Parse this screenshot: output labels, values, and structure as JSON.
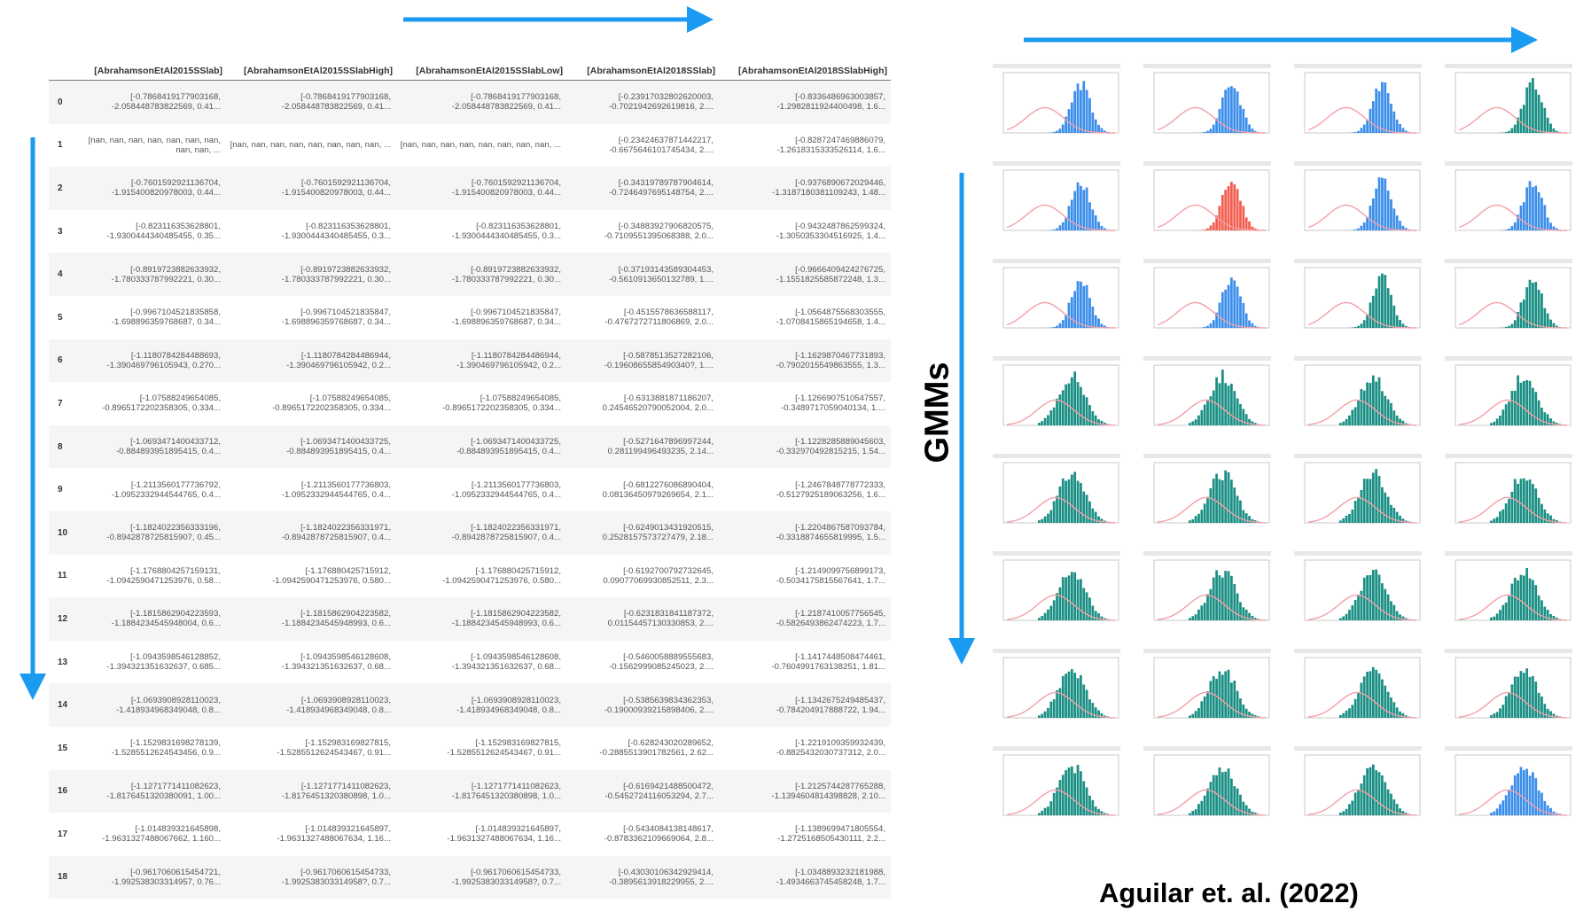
{
  "columns": [
    "[AbrahamsonEtAl2015SSlab]",
    "[AbrahamsonEtAl2015SSlabHigh]",
    "[AbrahamsonEtAl2015SSlabLow]",
    "[AbrahamsonEtAl2018SSlab]",
    "[AbrahamsonEtAl2018SSlabHigh]"
  ],
  "rows": [
    {
      "index": "0",
      "cells": [
        "[-0.7868419177903168, -2.058448783822569, 0.41...",
        "[-0.7868419177903168, -2.058448783822569, 0.41...",
        "[-0.7868419177903168, -2.058448783822569, 0.41...",
        "[-0.23917032802620003, -0.7021942692619816, 2....",
        "[-0.8336486963003857, -1.2982811924400498, 1.6..."
      ]
    },
    {
      "index": "1",
      "cells": [
        "[nan, nan, nan, nan, nan, nan, nan, nan, nan, ...",
        "[nan, nan, nan, nan, nan, nan, nan, nan, ...",
        "[nan, nan, nan, nan, nan, nan, nan, nan, ...",
        "[-0.23424637871442217, -0.6675646101745434, 2....",
        "[-0.8287247469886079, -1.2618315333526114, 1.6..."
      ]
    },
    {
      "index": "2",
      "cells": [
        "[-0.7601592921136704, -1.915400820978003, 0.44...",
        "[-0.7601592921136704, -1.915400820978003, 0.44...",
        "[-0.7601592921136704, -1.915400820978003, 0.44...",
        "[-0.34319789787904614, -0.7246497695148754, 2....",
        "[-0.9376890672029446, -1.3187180381109243, 1.48..."
      ]
    },
    {
      "index": "3",
      "cells": [
        "[-0.823116353628801, -1.9300444340485455, 0.35...",
        "[-0.823116353628801, -1.9300444340485455, 0.3...",
        "[-0.823116353628801, -1.9300444340485455, 0.3...",
        "[-0.34883927906820575, -0.7109551395068388, 2.0...",
        "[-0.9432487862599324, -1.3050353304516925, 1.4..."
      ]
    },
    {
      "index": "4",
      "cells": [
        "[-0.8919723882633932, -1.780333787992221, 0.30...",
        "[-0.8919723882633932, -1.780333787992221, 0.30...",
        "[-0.8919723882633932, -1.780333787992221, 0.30...",
        "[-0.37193143589304453, -0.5610913650132789, 1....",
        "[-0.9666409424276725, -1.1551825585872248, 1.3..."
      ]
    },
    {
      "index": "5",
      "cells": [
        "[-0.9967104521835858, -1.698896359768687, 0.34...",
        "[-0.9967104521835847, -1.698896359768687, 0.34...",
        "[-0.9967104521835847, -1.698896359768687, 0.34...",
        "[-0.4515578636588117, -0.4767272711806869, 2.0...",
        "[-1.0564875568303555, -1.0708415865194658, 1.4..."
      ]
    },
    {
      "index": "6",
      "cells": [
        "[-1.1180784284488693, -1.390469796105943, 0.270...",
        "[-1.1180784284486944, -1.390469796105942, 0.2...",
        "[-1.1180784284486944, -1.390469796105942, 0.2...",
        "[-0.5878513527282106, -0.1960865585490340?, 1....",
        "[-1.1629870467731893, -0.7902015549863555, 1.3..."
      ]
    },
    {
      "index": "7",
      "cells": [
        "[-1.07588249654085, -0.8965172202358305, 0.334...",
        "[-1.07588249654085, -0.8965172202358305, 0.334...",
        "[-1.07588249654085, -0.8965172202358305, 0.334...",
        "[-0.6313881871186207, 0.24546520790052004, 2.0...",
        "[-1.1266907510547557, -0.3489717059040134, 1...."
      ]
    },
    {
      "index": "8",
      "cells": [
        "[-1.0693471400433712, -0.884893951895415, 0.4...",
        "[-1.0693471400433725, -0.884893951895415, 0.4...",
        "[-1.0693471400433725, -0.884893951895415, 0.4...",
        "[-0.5271647896997244, 0.281199496493235, 2.14...",
        "[-1.1228285889045603, -0.332970492815215, 1.54..."
      ]
    },
    {
      "index": "9",
      "cells": [
        "[-1.2113560177736792, -1.0952332944544765, 0.4...",
        "[-1.2113560177736803, -1.0952332944544765, 0.4...",
        "[-1.2113560177736803, -1.0952332944544765, 0.4...",
        "[-0.6812276086890404, 0.08136450979269654, 2.1...",
        "[-1.2467848778772333, -0.5127925189063256, 1.6..."
      ]
    },
    {
      "index": "10",
      "cells": [
        "[-1.1824022356333196, -0.8942878725815907, 0.45...",
        "[-1.1824022356331971, -0.8942878725815907, 0.4...",
        "[-1.1824022356331971, -0.8942878725815907, 0.4...",
        "[-0.6249013431920515, 0.2528157573727479, 2.18...",
        "[-1.2204867587093784, -0.3318874655819995, 1.5..."
      ]
    },
    {
      "index": "11",
      "cells": [
        "[-1.1768804257159131, -1.0942590471253976, 0.58...",
        "[-1.176880425715912, -1.0942590471253976, 0.580...",
        "[-1.176880425715912, -1.0942590471253976, 0.580...",
        "[-0.6192700792732645, 0.09077069930852511, 2.3...",
        "[-1.2149099756899173, -0.5034175815567641, 1.7..."
      ]
    },
    {
      "index": "12",
      "cells": [
        "[-1.1815862904223593, -1.1884234545948004, 0.6...",
        "[-1.1815862904223582, -1.1884234545948993, 0.6...",
        "[-1.1815862904223582, -1.1884234545948993, 0.6...",
        "[-0.6231831841187372, 0.01154457130330853, 2....",
        "[-1.2187410057756545, -0.5826493862474223, 1.7..."
      ]
    },
    {
      "index": "13",
      "cells": [
        "[-1.0943598546128852, -1.394321351632637, 0.685...",
        "[-1.0943598546128608, -1.394321351632637, 0.68...",
        "[-1.0943598546128608, -1.394321351632637, 0.68...",
        "[-0.5460058889555683, -0.1562999085245023, 2....",
        "[-1.1417448508474461, -0.7604991763138251, 1.81..."
      ]
    },
    {
      "index": "14",
      "cells": [
        "[-1.0693908928110023, -1.418934968349048, 0.8...",
        "[-1.0693908928110023, -1.418934968349048, 0.8...",
        "[-1.0693908928110023, -1.418934968349048, 0.8...",
        "[-0.5385639834362353, -0.19000939215898406, 2....",
        "[-1.1342675249485437, -0.784204917888722, 1.94..."
      ]
    },
    {
      "index": "15",
      "cells": [
        "[-1.1529831698278139, -1.5285512624543456, 0.9...",
        "[-1.152983169827815, -1.5285512624543467, 0.91...",
        "[-1.152983169827815, -1.5285512624543467, 0.91...",
        "[-0.628243020289652, -0.2885513901782561, 2.62...",
        "[-1.2219109359932439, -0.8825432030737312, 2.0..."
      ]
    },
    {
      "index": "16",
      "cells": [
        "[-1.1271771411082623, -1.8176451320380091, 1.00...",
        "[-1.1271771411082623, -1.8176451320380898, 1.0...",
        "[-1.1271771411082623, -1.8176451320380898, 1.0...",
        "[-0.6169421488500472, -0.5452724116053294, 2.7...",
        "[-1.2125744287765288, -1.1394604814398828, 2.10..."
      ]
    },
    {
      "index": "17",
      "cells": [
        "[-1.014839321645898, -1.9631327488067662, 1.160...",
        "[-1.014839321645897, -1.9631327488067634, 1.16...",
        "[-1.014839321645897, -1.9631327488067634, 1.16...",
        "[-0.5434084138148617, -0.8783362109669064, 2.8...",
        "[-1.1389699471805554, -1.2725168505430111, 2.2..."
      ]
    },
    {
      "index": "18",
      "cells": [
        "[-0.9617060615454721, -1.992538303314957, 0.76...",
        "[-0.9617060615454733, -1.992538303314958?, 0.7...",
        "[-0.9617060615454733, -1.992538303314958?, 0.7...",
        "[-0.43030106342929414, -0.3895613918229955, 2....",
        "[-1.0348893232181988, -1.4934663745458248, 1.7..."
      ]
    }
  ],
  "grid": {
    "rows": 8,
    "cols": 4,
    "bar_colors": {
      "blue": "#3b8eea",
      "red": "#f25c4e",
      "teal": "#1a8f84"
    },
    "curve_color": "#f4a0a8",
    "cell_colors": [
      [
        "blue",
        "blue",
        "blue",
        "teal"
      ],
      [
        "blue",
        "red",
        "blue",
        "blue"
      ],
      [
        "blue",
        "blue",
        "teal",
        "teal"
      ],
      [
        "teal",
        "teal",
        "teal",
        "teal"
      ],
      [
        "teal",
        "teal",
        "teal",
        "teal"
      ],
      [
        "teal",
        "teal",
        "teal",
        "teal"
      ],
      [
        "teal",
        "teal",
        "teal",
        "teal"
      ],
      [
        "teal",
        "teal",
        "teal",
        "blue"
      ]
    ]
  },
  "labels": {
    "gmm": "GMMs",
    "citation": "Aguilar et. al. (2022)"
  },
  "colors": {
    "arrow": "#1a9af0"
  }
}
